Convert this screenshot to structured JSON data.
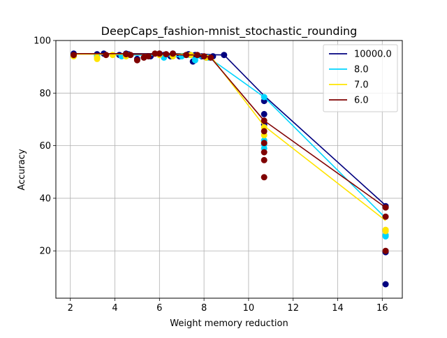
{
  "chart_data": {
    "type": "line",
    "title": "DeepCaps_fashion-mnist_stochastic_rounding",
    "xlabel": "Weight memory reduction",
    "ylabel": "Accuracy",
    "xlim": [
      1.35,
      16.9
    ],
    "ylim": [
      2.0,
      100.0
    ],
    "xticks": [
      2,
      4,
      6,
      8,
      10,
      12,
      14,
      16
    ],
    "yticks": [
      20,
      40,
      60,
      80,
      100
    ],
    "grid": true,
    "legend_position": "top-right",
    "series": [
      {
        "name": "10000.0",
        "color": "#00007f",
        "line": {
          "x": [
            2.15,
            3.2,
            4.3,
            4.6,
            6.0,
            6.5,
            7.0,
            7.5,
            8.0,
            8.3,
            8.9,
            10.7,
            16.15
          ],
          "y": [
            95.0,
            95.0,
            95.0,
            95.0,
            95.0,
            95.0,
            95.0,
            95.0,
            94.8,
            94.6,
            94.5,
            79.0,
            37.3
          ]
        },
        "points": {
          "x": [
            2.15,
            3.2,
            3.5,
            4.2,
            4.5,
            4.6,
            5.0,
            5.6,
            6.0,
            6.2,
            6.5,
            6.6,
            6.9,
            7.3,
            7.5,
            7.6,
            7.9,
            8.1,
            8.4,
            8.9,
            10.7,
            10.7,
            10.7,
            16.15,
            16.15,
            16.15
          ],
          "y": [
            95.0,
            94.8,
            95.0,
            94.5,
            95.0,
            94.8,
            93.0,
            94.0,
            95.0,
            94.5,
            94.0,
            95.0,
            94.0,
            94.8,
            92.0,
            94.5,
            94.0,
            93.5,
            94.0,
            94.5,
            77.0,
            72.0,
            68.0,
            19.5,
            7.3,
            37.0
          ]
        }
      },
      {
        "name": "8.0",
        "color": "#00d4ff",
        "line": {
          "x": [
            2.15,
            3.2,
            4.3,
            4.6,
            6.0,
            6.5,
            7.0,
            7.5,
            8.0,
            8.3,
            10.7,
            16.15
          ],
          "y": [
            95.0,
            94.8,
            94.5,
            94.5,
            94.3,
            94.0,
            93.8,
            93.5,
            93.3,
            93.0,
            78.5,
            32.5
          ]
        },
        "points": {
          "x": [
            3.2,
            4.3,
            4.6,
            6.2,
            7.0,
            7.6,
            8.2,
            10.7,
            10.7,
            10.7,
            10.7,
            16.15,
            16.15
          ],
          "y": [
            94.0,
            94.0,
            94.5,
            93.5,
            94.0,
            92.5,
            93.5,
            78.5,
            62.0,
            60.5,
            59.0,
            26.0,
            25.5
          ]
        }
      },
      {
        "name": "7.0",
        "color": "#ffe400",
        "line": {
          "x": [
            2.15,
            3.2,
            4.3,
            4.6,
            6.0,
            6.5,
            7.0,
            7.5,
            8.0,
            8.3,
            10.7,
            16.15
          ],
          "y": [
            94.8,
            94.8,
            94.8,
            94.8,
            94.8,
            94.8,
            94.8,
            94.8,
            94.5,
            94.0,
            67.5,
            31.5
          ]
        },
        "points": {
          "x": [
            2.15,
            3.2,
            3.2,
            3.9,
            4.5,
            6.0,
            6.6,
            7.4,
            8.1,
            10.7,
            10.7,
            16.15,
            16.15
          ],
          "y": [
            94.0,
            93.5,
            93.0,
            94.5,
            94.0,
            94.5,
            94.0,
            94.5,
            93.5,
            67.0,
            64.0,
            28.0,
            27.5
          ]
        }
      },
      {
        "name": "6.0",
        "color": "#7f0000",
        "line": {
          "x": [
            2.15,
            3.2,
            4.3,
            4.6,
            6.0,
            6.5,
            7.0,
            7.5,
            8.0,
            8.3,
            10.7,
            16.15
          ],
          "y": [
            95.0,
            95.0,
            95.0,
            94.8,
            94.8,
            94.8,
            94.5,
            94.5,
            94.3,
            93.5,
            69.5,
            36.5
          ]
        },
        "points": {
          "x": [
            2.15,
            3.6,
            4.5,
            4.7,
            5.0,
            5.3,
            5.5,
            5.8,
            6.0,
            6.3,
            6.6,
            7.2,
            7.7,
            8.0,
            8.3,
            10.7,
            10.7,
            10.7,
            10.7,
            10.7,
            10.7,
            16.15,
            16.15,
            16.15
          ],
          "y": [
            94.5,
            94.5,
            94.8,
            94.5,
            92.5,
            93.5,
            94.0,
            95.0,
            95.0,
            94.8,
            95.0,
            94.5,
            94.5,
            94.0,
            93.5,
            69.5,
            65.5,
            61.0,
            57.5,
            54.5,
            48.0,
            36.5,
            33.0,
            20.0
          ]
        }
      }
    ]
  }
}
